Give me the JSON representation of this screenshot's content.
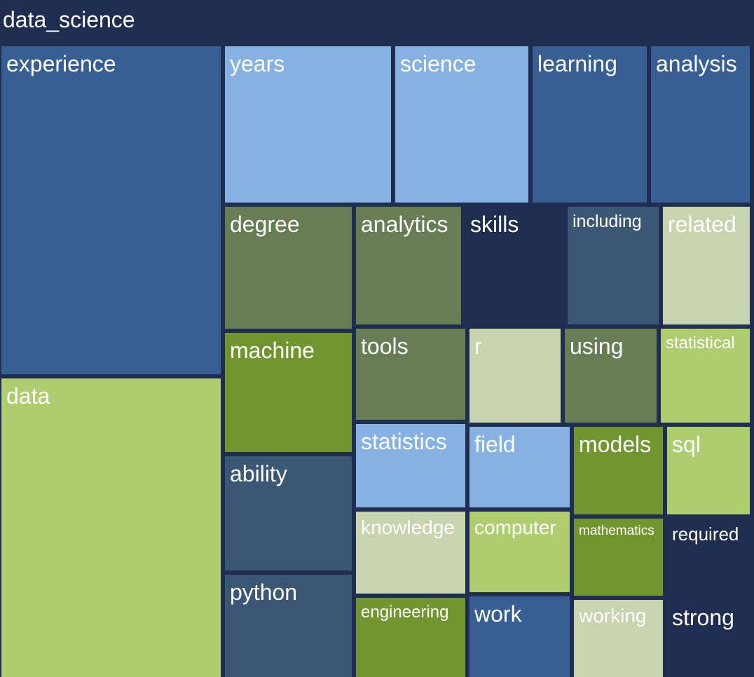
{
  "chart_data": {
    "type": "treemap",
    "title": "",
    "root": "data_science",
    "colors": {
      "background": "#1f2e50",
      "blue_dark": "#375f93",
      "blue_light": "#85b2e3",
      "slate": "#3a5773",
      "navy": "#1f2e50",
      "olive": "#677d54",
      "green": "#72962f",
      "lime": "#aecd6e",
      "sage": "#c7d4ae"
    },
    "nodes": [
      {
        "label": "experience",
        "color": "#375f93"
      },
      {
        "label": "data",
        "color": "#aecd6e"
      },
      {
        "label": "years",
        "color": "#85b2e3"
      },
      {
        "label": "science",
        "color": "#85b2e3"
      },
      {
        "label": "learning",
        "color": "#375f93"
      },
      {
        "label": "analysis",
        "color": "#375f93"
      },
      {
        "label": "degree",
        "color": "#677d54"
      },
      {
        "label": "analytics",
        "color": "#677d54"
      },
      {
        "label": "skills",
        "color": "#1f2e50"
      },
      {
        "label": "including",
        "color": "#3a5773"
      },
      {
        "label": "related",
        "color": "#c7d4ae"
      },
      {
        "label": "machine",
        "color": "#72962f"
      },
      {
        "label": "tools",
        "color": "#677d54"
      },
      {
        "label": "r",
        "color": "#c7d4ae"
      },
      {
        "label": "using",
        "color": "#677d54"
      },
      {
        "label": "statistical",
        "color": "#aecd6e"
      },
      {
        "label": "ability",
        "color": "#3a5773"
      },
      {
        "label": "statistics",
        "color": "#85b2e3"
      },
      {
        "label": "field",
        "color": "#85b2e3"
      },
      {
        "label": "models",
        "color": "#72962f"
      },
      {
        "label": "sql",
        "color": "#aecd6e"
      },
      {
        "label": "knowledge",
        "color": "#c7d4ae"
      },
      {
        "label": "computer",
        "color": "#aecd6e"
      },
      {
        "label": "mathematics",
        "color": "#72962f"
      },
      {
        "label": "required",
        "color": "#1f2e50"
      },
      {
        "label": "python",
        "color": "#3a5773"
      },
      {
        "label": "engineering",
        "color": "#72962f"
      },
      {
        "label": "work",
        "color": "#375f93"
      },
      {
        "label": "working",
        "color": "#c7d4ae"
      },
      {
        "label": "strong",
        "color": "#1f2e50"
      }
    ]
  }
}
